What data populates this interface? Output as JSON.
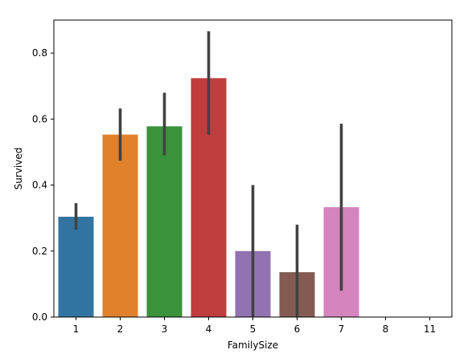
{
  "chart_data": {
    "type": "bar",
    "title": "",
    "xlabel": "FamilySize",
    "ylabel": "Survived",
    "ylim": [
      0,
      0.9
    ],
    "yticks": [
      0.0,
      0.2,
      0.4,
      0.6,
      0.8
    ],
    "ytick_labels": [
      "0.0",
      "0.2",
      "0.4",
      "0.6",
      "0.8"
    ],
    "grid": false,
    "categories": [
      "1",
      "2",
      "3",
      "4",
      "5",
      "6",
      "7",
      "8",
      "11"
    ],
    "values": [
      0.304,
      0.553,
      0.578,
      0.724,
      0.2,
      0.136,
      0.333,
      0.0,
      0.0
    ],
    "ci_low": [
      0.265,
      0.474,
      0.49,
      0.552,
      0.0,
      0.0,
      0.08,
      0.0,
      0.0
    ],
    "ci_high": [
      0.345,
      0.632,
      0.68,
      0.866,
      0.4,
      0.28,
      0.586,
      0.0,
      0.0
    ],
    "colors": [
      "#3274a1",
      "#e1812c",
      "#3a923a",
      "#c03d3e",
      "#9372b2",
      "#845b53",
      "#d684bd",
      "#7f7f7f",
      "#a9aa35"
    ],
    "error_color": "#424242"
  }
}
